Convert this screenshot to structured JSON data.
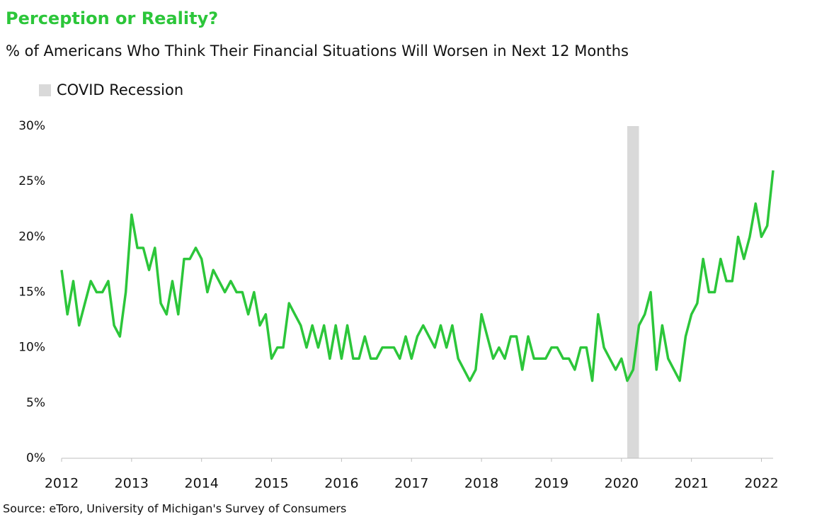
{
  "chart_data": {
    "type": "line",
    "title": "Perception or Reality?",
    "subtitle": "% of Americans Who Think Their Financial Situations Will Worsen in Next 12 Months",
    "source": "Source: eToro, University of Michigan's Survey of Consumers",
    "recession": {
      "label": "COVID Recession",
      "start": 2020.083,
      "end": 2020.25,
      "color": "#d9d9d9"
    },
    "x": [
      2012,
      2012.083,
      2012.167,
      2012.25,
      2012.333,
      2012.417,
      2012.5,
      2012.583,
      2012.667,
      2012.75,
      2012.833,
      2012.917,
      2013,
      2013.083,
      2013.167,
      2013.25,
      2013.333,
      2013.417,
      2013.5,
      2013.583,
      2013.667,
      2013.75,
      2013.833,
      2013.917,
      2014,
      2014.083,
      2014.167,
      2014.25,
      2014.333,
      2014.417,
      2014.5,
      2014.583,
      2014.667,
      2014.75,
      2014.833,
      2014.917,
      2015,
      2015.083,
      2015.167,
      2015.25,
      2015.333,
      2015.417,
      2015.5,
      2015.583,
      2015.667,
      2015.75,
      2015.833,
      2015.917,
      2016,
      2016.083,
      2016.167,
      2016.25,
      2016.333,
      2016.417,
      2016.5,
      2016.583,
      2016.667,
      2016.75,
      2016.833,
      2016.917,
      2017,
      2017.083,
      2017.167,
      2017.25,
      2017.333,
      2017.417,
      2017.5,
      2017.583,
      2017.667,
      2017.75,
      2017.833,
      2017.917,
      2018,
      2018.083,
      2018.167,
      2018.25,
      2018.333,
      2018.417,
      2018.5,
      2018.583,
      2018.667,
      2018.75,
      2018.833,
      2018.917,
      2019,
      2019.083,
      2019.167,
      2019.25,
      2019.333,
      2019.417,
      2019.5,
      2019.583,
      2019.667,
      2019.75,
      2019.833,
      2019.917,
      2020,
      2020.083,
      2020.167,
      2020.25,
      2020.333,
      2020.417,
      2020.5,
      2020.583,
      2020.667,
      2020.75,
      2020.833,
      2020.917,
      2021,
      2021.083,
      2021.167,
      2021.25,
      2021.333,
      2021.417,
      2021.5,
      2021.583,
      2021.667,
      2021.75,
      2021.833,
      2021.917,
      2022,
      2022.083,
      2022.167
    ],
    "series": [
      {
        "color": "#2cc63a",
        "values": [
          17,
          13,
          16,
          12,
          14,
          16,
          15,
          15,
          16,
          12,
          11,
          15,
          22,
          19,
          19,
          17,
          19,
          14,
          13,
          16,
          13,
          18,
          18,
          19,
          18,
          15,
          17,
          16,
          15,
          16,
          15,
          15,
          13,
          15,
          12,
          13,
          9,
          10,
          10,
          14,
          13,
          12,
          10,
          12,
          10,
          12,
          9,
          12,
          9,
          12,
          9,
          9,
          11,
          9,
          9,
          10,
          10,
          10,
          9,
          11,
          9,
          11,
          12,
          11,
          10,
          12,
          10,
          12,
          9,
          8,
          7,
          8,
          13,
          11,
          9,
          10,
          9,
          11,
          11,
          8,
          11,
          9,
          9,
          9,
          10,
          10,
          9,
          9,
          8,
          10,
          10,
          7,
          13,
          10,
          9,
          8,
          9,
          7,
          8,
          12,
          13,
          15,
          8,
          12,
          9,
          8,
          7,
          11,
          13,
          14,
          18,
          15,
          15,
          18,
          16,
          16,
          20,
          18,
          20,
          23,
          20,
          21,
          26
        ]
      }
    ],
    "xlim": [
      2012,
      2022.167
    ],
    "xticks": [
      2012,
      2013,
      2014,
      2015,
      2016,
      2017,
      2018,
      2019,
      2020,
      2021,
      2022
    ],
    "ylim": [
      0,
      30
    ],
    "yticks": [
      {
        "value": 0,
        "label": "0%"
      },
      {
        "value": 5,
        "label": "5%"
      },
      {
        "value": 10,
        "label": "10%"
      },
      {
        "value": 15,
        "label": "15%"
      },
      {
        "value": 20,
        "label": "20%"
      },
      {
        "value": 25,
        "label": "25%"
      },
      {
        "value": 30,
        "label": "30%"
      }
    ],
    "grid": false
  }
}
